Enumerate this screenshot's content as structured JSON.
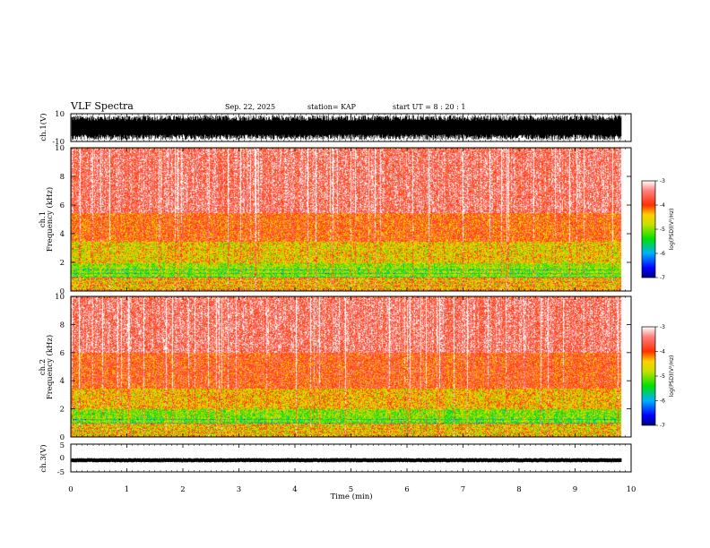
{
  "header": {
    "title": "VLF Spectra",
    "date": "Sep. 22, 2025",
    "station": "station= KAP",
    "start": "start  UT  =   8  : 20 : 1"
  },
  "chart_data": {
    "type": "heatmap",
    "xlabel": "Time (min)",
    "xlim": [
      0,
      10
    ],
    "x_ticks": [
      "0",
      "1",
      "2",
      "3",
      "4",
      "5",
      "6",
      "7",
      "8",
      "9",
      "10"
    ],
    "data_end_min": 9.83,
    "panels": [
      {
        "id": "ch1-waveform",
        "type": "line",
        "ylabel": "ch.1(V)",
        "ylim": [
          -10,
          10
        ],
        "y_ticks": [
          "10",
          "-10"
        ],
        "amplitude_range": [
          -9,
          9
        ]
      },
      {
        "id": "ch1-spectrogram",
        "type": "heatmap",
        "ylabel": "ch.1\nFrequency (kHz)",
        "ylabel_lines": [
          "ch.1",
          "Frequency  (kHz)"
        ],
        "ylim": [
          0,
          10
        ],
        "y_ticks": [
          "0",
          "2",
          "4",
          "6",
          "8",
          "10"
        ],
        "colorbar": {
          "label": "log(PSD)(V²/Hz)",
          "range": [
            -7,
            -3
          ],
          "ticks": [
            "-3",
            "-4",
            "-5",
            "-6",
            "-7"
          ]
        },
        "bands": [
          {
            "from_khz": 0,
            "to_khz": 1,
            "level": -4.2
          },
          {
            "from_khz": 1,
            "to_khz": 2,
            "level": -4.9
          },
          {
            "from_khz": 2,
            "to_khz": 3.5,
            "level": -4.5
          },
          {
            "from_khz": 3.5,
            "to_khz": 5.5,
            "level": -4.0
          },
          {
            "from_khz": 5.5,
            "to_khz": 10,
            "level": -3.5
          }
        ]
      },
      {
        "id": "ch2-spectrogram",
        "type": "heatmap",
        "ylabel_lines": [
          "ch.2",
          "Frequency  (kHz)"
        ],
        "ylim": [
          0,
          10
        ],
        "y_ticks": [
          "0",
          "2",
          "4",
          "6",
          "8",
          "10"
        ],
        "colorbar": {
          "label": "log(PSD)(V²/Hz)",
          "range": [
            -7,
            -3
          ],
          "ticks": [
            "-3",
            "-4",
            "-5",
            "-6",
            "-7"
          ]
        },
        "bands": [
          {
            "from_khz": 0,
            "to_khz": 1,
            "level": -4.3
          },
          {
            "from_khz": 1,
            "to_khz": 2,
            "level": -5.0
          },
          {
            "from_khz": 2,
            "to_khz": 3.5,
            "level": -4.4
          },
          {
            "from_khz": 3.5,
            "to_khz": 6,
            "level": -3.9
          },
          {
            "from_khz": 6,
            "to_khz": 10,
            "level": -3.5
          }
        ]
      },
      {
        "id": "ch3-waveform",
        "type": "line",
        "ylabel": "ch.3(V)",
        "ylim": [
          -5,
          5
        ],
        "y_ticks": [
          "5",
          "0",
          "-5"
        ],
        "baseline_v": -0.8
      }
    ]
  }
}
